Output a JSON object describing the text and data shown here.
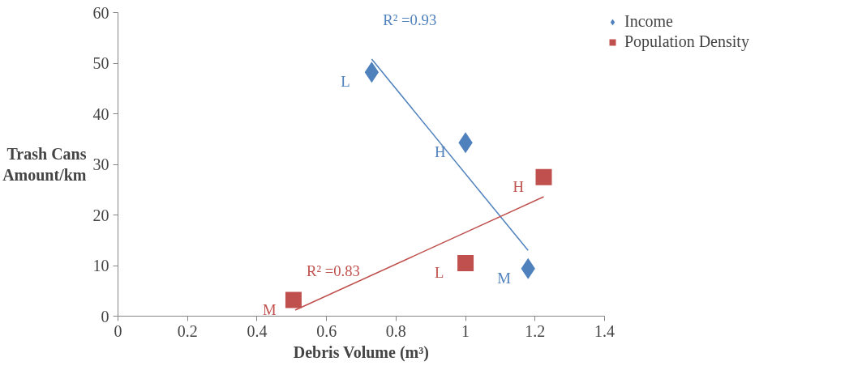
{
  "chart_data": {
    "type": "scatter",
    "xlabel": "Debris Volume (m³)",
    "ylabel": "Trash Cans\nAmount/km",
    "xlim": [
      0,
      1.4
    ],
    "xticks": [
      0,
      0.2,
      0.4,
      0.6,
      0.8,
      1,
      1.2,
      1.4
    ],
    "ylim": [
      0,
      60
    ],
    "yticks": [
      0,
      10,
      20,
      30,
      40,
      50,
      60
    ],
    "grid": false,
    "legend": "right",
    "series": [
      {
        "name": "Income",
        "color": "#4f81bd",
        "marker": "diamond",
        "x": [
          0.73,
          1.0,
          1.18
        ],
        "values": [
          48.2,
          34.3,
          9.4
        ],
        "value_labels": [
          "L",
          "H",
          "M"
        ]
      },
      {
        "name": "Population Density",
        "color": "#c0504d",
        "marker": "square",
        "x": [
          0.505,
          1.0,
          1.225
        ],
        "values": [
          3.2,
          10.5,
          27.5
        ],
        "value_labels": [
          "M",
          "L",
          "H"
        ]
      },
      {
        "type": "line",
        "name": "R² =0.93",
        "color": "#4f81bd",
        "marker": "none",
        "x": [
          0.73,
          1.18
        ],
        "values": [
          50.8,
          13.0
        ]
      },
      {
        "type": "line",
        "name": "R² =0.83",
        "color": "#c0504d",
        "marker": "none",
        "x": [
          0.51,
          1.225
        ],
        "values": [
          1.2,
          23.6
        ]
      }
    ]
  }
}
